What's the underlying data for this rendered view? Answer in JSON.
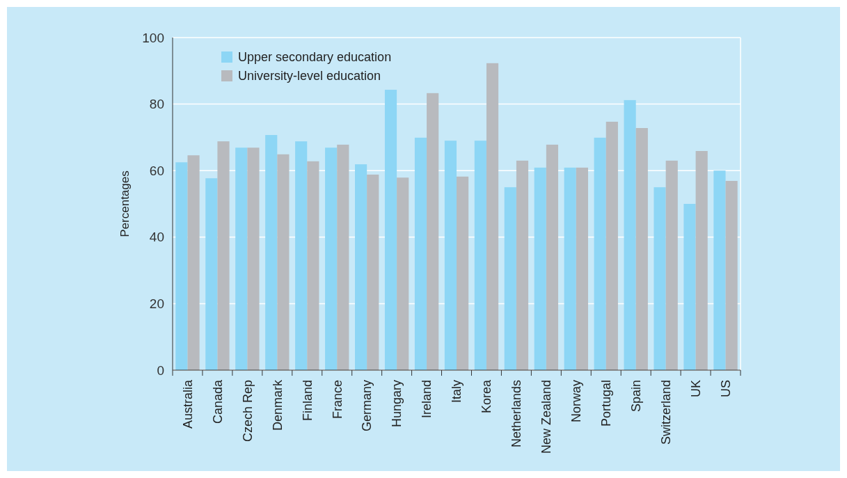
{
  "chart_data": {
    "type": "bar",
    "ylabel": "Percentages",
    "categories": [
      "Australia",
      "Canada",
      "Czech Rep",
      "Denmark",
      "Finland",
      "France",
      "Germany",
      "Hungary",
      "Ireland",
      "Italy",
      "Korea",
      "Netherlands",
      "New Zealand",
      "Norway",
      "Portugal",
      "Spain",
      "Switzerland",
      "UK",
      "US"
    ],
    "series": [
      {
        "name": "Upper secondary education",
        "color": "#8dd6f5",
        "values": [
          62.5,
          57.7,
          66.9,
          70.7,
          68.8,
          66.9,
          61.9,
          84.3,
          69.9,
          69.0,
          69.0,
          55.0,
          60.9,
          60.9,
          69.9,
          81.2,
          55.0,
          50.0,
          60.0
        ]
      },
      {
        "name": "University-level education",
        "color": "#b8babe",
        "values": [
          64.6,
          68.8,
          66.9,
          64.9,
          62.8,
          67.8,
          58.8,
          57.9,
          83.3,
          58.2,
          92.3,
          63.0,
          67.8,
          60.9,
          74.7,
          72.8,
          63.0,
          65.9,
          56.9
        ]
      }
    ],
    "ylim": [
      0,
      100
    ],
    "yticks": [
      0,
      20,
      40,
      60,
      80,
      100
    ],
    "grid": "y",
    "legend": "top left"
  }
}
